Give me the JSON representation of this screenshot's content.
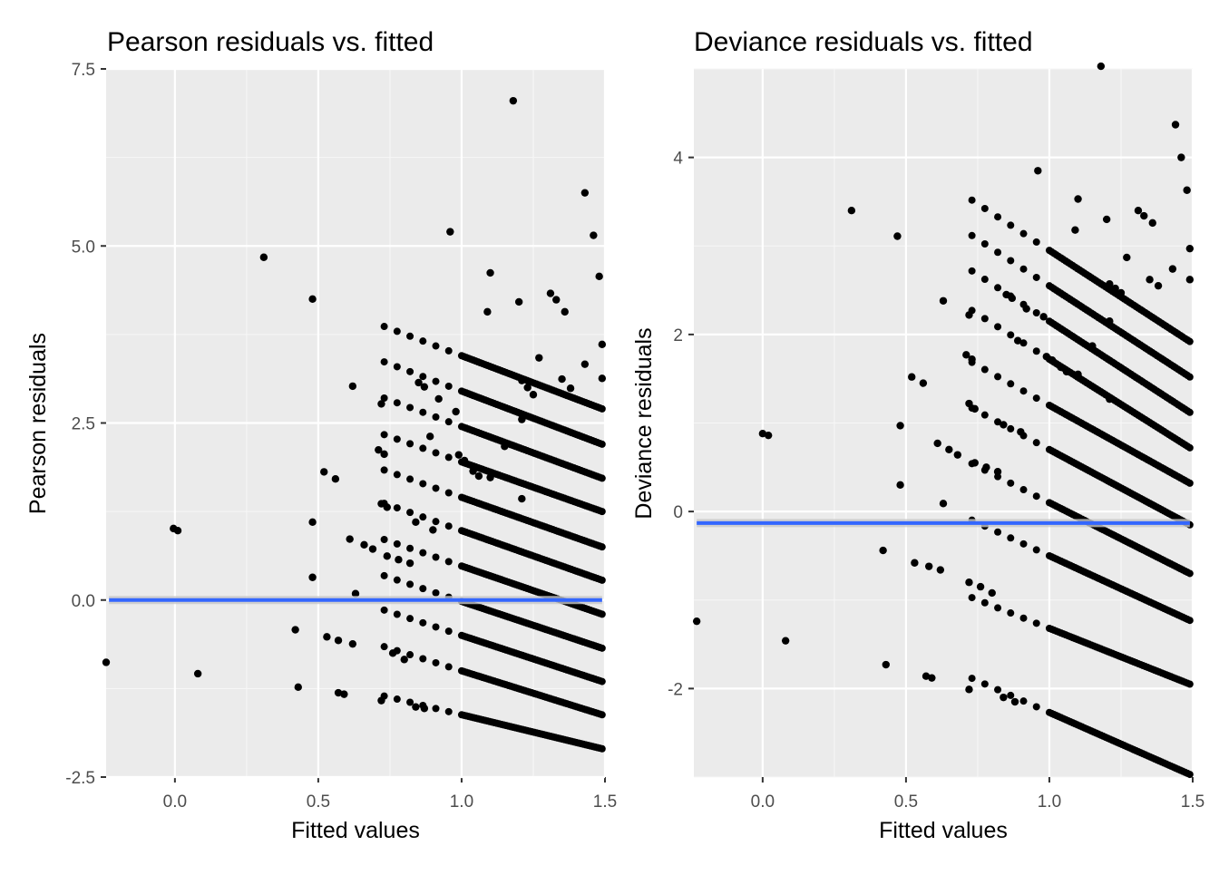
{
  "chart_data": [
    {
      "type": "scatter",
      "title": "Pearson residuals vs. fitted",
      "xlabel": "Fitted values",
      "ylabel": "Pearson residuals",
      "xlim": [
        -0.24,
        1.5
      ],
      "ylim": [
        -2.5,
        7.5
      ],
      "x_ticks": [
        0.0,
        0.5,
        1.0,
        1.5
      ],
      "x_tick_labels": [
        "0.0",
        "0.5",
        "1.0",
        "1.5"
      ],
      "y_ticks": [
        -2.5,
        0.0,
        2.5,
        5.0,
        7.5
      ],
      "y_tick_labels": [
        "-2.5",
        "0.0",
        "2.5",
        "5.0",
        "7.5"
      ],
      "grid": true,
      "panel_background": "#ebebeb",
      "point_color": "#000000",
      "smooth_line": {
        "from": [
          -0.23,
          0.0
        ],
        "to": [
          1.49,
          0.0
        ],
        "color": "#3366ff",
        "band_color": "#c8c8c8"
      },
      "bands": [
        {
          "y_at_min": -1.62,
          "y_at_max": -2.1
        },
        {
          "y_at_min": -1.0,
          "y_at_max": -1.62
        },
        {
          "y_at_min": -0.5,
          "y_at_max": -1.15
        },
        {
          "y_at_min": -0.02,
          "y_at_max": -0.68
        },
        {
          "y_at_min": 0.48,
          "y_at_max": -0.2
        },
        {
          "y_at_min": 0.98,
          "y_at_max": 0.28
        },
        {
          "y_at_min": 1.45,
          "y_at_max": 0.75
        },
        {
          "y_at_min": 1.95,
          "y_at_max": 1.25
        },
        {
          "y_at_min": 2.45,
          "y_at_max": 1.72
        },
        {
          "y_at_min": 2.95,
          "y_at_max": 2.2
        },
        {
          "y_at_min": 3.45,
          "y_at_max": 2.7
        }
      ],
      "band_x_range": [
        1.0,
        1.49
      ],
      "points": [
        {
          "x": -0.24,
          "y": -0.88
        },
        {
          "x": -0.005,
          "y": 1.01
        },
        {
          "x": 0.01,
          "y": 0.98
        },
        {
          "x": 0.08,
          "y": -1.04
        },
        {
          "x": 0.31,
          "y": 4.84
        },
        {
          "x": 0.42,
          "y": -0.42
        },
        {
          "x": 0.43,
          "y": -1.23
        },
        {
          "x": 0.48,
          "y": 4.25
        },
        {
          "x": 0.48,
          "y": 1.1
        },
        {
          "x": 0.48,
          "y": 0.32
        },
        {
          "x": 0.52,
          "y": 1.81
        },
        {
          "x": 0.53,
          "y": -0.52
        },
        {
          "x": 0.56,
          "y": 1.71
        },
        {
          "x": 0.57,
          "y": -1.31
        },
        {
          "x": 0.57,
          "y": -0.57
        },
        {
          "x": 0.59,
          "y": -1.33
        },
        {
          "x": 0.61,
          "y": 0.86
        },
        {
          "x": 0.62,
          "y": 3.02
        },
        {
          "x": 0.62,
          "y": -0.62
        },
        {
          "x": 0.63,
          "y": 0.09
        },
        {
          "x": 0.66,
          "y": 0.78
        },
        {
          "x": 0.69,
          "y": 0.72
        },
        {
          "x": 0.71,
          "y": 2.12
        },
        {
          "x": 0.72,
          "y": 2.77
        },
        {
          "x": 0.72,
          "y": -1.42
        },
        {
          "x": 0.72,
          "y": 1.36
        },
        {
          "x": 0.73,
          "y": 2.06
        },
        {
          "x": 0.74,
          "y": 1.31
        },
        {
          "x": 0.74,
          "y": 0.62
        },
        {
          "x": 0.76,
          "y": -0.75
        },
        {
          "x": 0.78,
          "y": 0.57
        },
        {
          "x": 0.8,
          "y": -0.84
        },
        {
          "x": 0.82,
          "y": 0.52
        },
        {
          "x": 0.84,
          "y": 1.1
        },
        {
          "x": 0.84,
          "y": -1.51
        },
        {
          "x": 0.85,
          "y": 3.07
        },
        {
          "x": 0.87,
          "y": 3.01
        },
        {
          "x": 0.87,
          "y": -1.53
        },
        {
          "x": 0.89,
          "y": 2.31
        },
        {
          "x": 0.9,
          "y": 0.99
        },
        {
          "x": 0.92,
          "y": 2.84
        },
        {
          "x": 0.96,
          "y": 5.2
        },
        {
          "x": 0.98,
          "y": 2.66
        },
        {
          "x": 0.99,
          "y": 2.05
        },
        {
          "x": 1.01,
          "y": 1.97
        },
        {
          "x": 1.04,
          "y": 1.82
        },
        {
          "x": 1.06,
          "y": 1.75
        },
        {
          "x": 1.09,
          "y": 4.07
        },
        {
          "x": 1.1,
          "y": 4.62
        },
        {
          "x": 1.1,
          "y": 1.73
        },
        {
          "x": 1.15,
          "y": 2.17
        },
        {
          "x": 1.18,
          "y": 7.05
        },
        {
          "x": 1.2,
          "y": 4.21
        },
        {
          "x": 1.21,
          "y": 3.1
        },
        {
          "x": 1.21,
          "y": 2.55
        },
        {
          "x": 1.21,
          "y": 1.43
        },
        {
          "x": 1.23,
          "y": 3.0
        },
        {
          "x": 1.25,
          "y": 2.9
        },
        {
          "x": 1.27,
          "y": 3.42
        },
        {
          "x": 1.31,
          "y": 4.33
        },
        {
          "x": 1.33,
          "y": 4.24
        },
        {
          "x": 1.35,
          "y": 3.12
        },
        {
          "x": 1.36,
          "y": 4.07
        },
        {
          "x": 1.38,
          "y": 2.99
        },
        {
          "x": 1.43,
          "y": 5.75
        },
        {
          "x": 1.43,
          "y": 3.33
        },
        {
          "x": 1.46,
          "y": 5.15
        },
        {
          "x": 1.48,
          "y": 4.57
        },
        {
          "x": 1.49,
          "y": 3.61
        },
        {
          "x": 1.49,
          "y": 3.13
        }
      ]
    },
    {
      "type": "scatter",
      "title": "Deviance residuals vs. fitted",
      "xlabel": "Fitted values",
      "ylabel": "Deviance residuals",
      "xlim": [
        -0.24,
        1.5
      ],
      "ylim": [
        -3.0,
        5.0
      ],
      "x_ticks": [
        0.0,
        0.5,
        1.0,
        1.5
      ],
      "x_tick_labels": [
        "0.0",
        "0.5",
        "1.0",
        "1.5"
      ],
      "y_ticks": [
        -2,
        0,
        2,
        4
      ],
      "y_tick_labels": [
        "-2",
        "0",
        "2",
        "4"
      ],
      "grid": true,
      "panel_background": "#ebebeb",
      "point_color": "#000000",
      "smooth_line": {
        "from": [
          -0.23,
          -0.13
        ],
        "to": [
          1.49,
          -0.13
        ],
        "color": "#3366ff",
        "band_color": "#c8c8c8"
      },
      "bands": [
        {
          "y_at_min": -2.27,
          "y_at_max": -2.97
        },
        {
          "y_at_min": -1.32,
          "y_at_max": -1.95
        },
        {
          "y_at_min": -0.5,
          "y_at_max": -1.23
        },
        {
          "y_at_min": 0.1,
          "y_at_max": -0.7
        },
        {
          "y_at_min": 0.7,
          "y_at_max": -0.15
        },
        {
          "y_at_min": 1.2,
          "y_at_max": 0.32
        },
        {
          "y_at_min": 1.72,
          "y_at_max": 0.72
        },
        {
          "y_at_min": 2.15,
          "y_at_max": 1.12
        },
        {
          "y_at_min": 2.55,
          "y_at_max": 1.52
        },
        {
          "y_at_min": 2.95,
          "y_at_max": 1.92
        }
      ],
      "band_x_range": [
        1.0,
        1.49
      ],
      "points": [
        {
          "x": -0.23,
          "y": -1.24
        },
        {
          "x": 0.0,
          "y": 0.88
        },
        {
          "x": 0.02,
          "y": 0.86
        },
        {
          "x": 0.08,
          "y": -1.46
        },
        {
          "x": 0.31,
          "y": 3.4
        },
        {
          "x": 0.42,
          "y": -0.44
        },
        {
          "x": 0.43,
          "y": -1.73
        },
        {
          "x": 0.47,
          "y": 3.11
        },
        {
          "x": 0.48,
          "y": 0.97
        },
        {
          "x": 0.48,
          "y": 0.3
        },
        {
          "x": 0.52,
          "y": 1.52
        },
        {
          "x": 0.53,
          "y": -0.58
        },
        {
          "x": 0.56,
          "y": 1.45
        },
        {
          "x": 0.57,
          "y": -1.86
        },
        {
          "x": 0.58,
          "y": -0.62
        },
        {
          "x": 0.59,
          "y": -1.88
        },
        {
          "x": 0.61,
          "y": 0.77
        },
        {
          "x": 0.62,
          "y": -0.66
        },
        {
          "x": 0.63,
          "y": 2.38
        },
        {
          "x": 0.63,
          "y": 0.09
        },
        {
          "x": 0.65,
          "y": 0.7
        },
        {
          "x": 0.68,
          "y": 0.64
        },
        {
          "x": 0.71,
          "y": 1.77
        },
        {
          "x": 0.72,
          "y": 2.22
        },
        {
          "x": 0.72,
          "y": -0.8
        },
        {
          "x": 0.72,
          "y": -2.01
        },
        {
          "x": 0.72,
          "y": 1.22
        },
        {
          "x": 0.73,
          "y": 1.72
        },
        {
          "x": 0.74,
          "y": 1.16
        },
        {
          "x": 0.74,
          "y": 0.55
        },
        {
          "x": 0.76,
          "y": -0.85
        },
        {
          "x": 0.78,
          "y": 0.5
        },
        {
          "x": 0.8,
          "y": -0.92
        },
        {
          "x": 0.82,
          "y": 0.45
        },
        {
          "x": 0.84,
          "y": 0.98
        },
        {
          "x": 0.84,
          "y": -2.1
        },
        {
          "x": 0.85,
          "y": 2.45
        },
        {
          "x": 0.87,
          "y": 2.41
        },
        {
          "x": 0.88,
          "y": -2.15
        },
        {
          "x": 0.89,
          "y": 1.93
        },
        {
          "x": 0.9,
          "y": 0.9
        },
        {
          "x": 0.92,
          "y": 2.29
        },
        {
          "x": 0.96,
          "y": 3.85
        },
        {
          "x": 0.98,
          "y": 2.2
        },
        {
          "x": 0.99,
          "y": 1.75
        },
        {
          "x": 1.01,
          "y": 1.71
        },
        {
          "x": 1.04,
          "y": 1.63
        },
        {
          "x": 1.06,
          "y": 1.58
        },
        {
          "x": 1.09,
          "y": 3.18
        },
        {
          "x": 1.1,
          "y": 3.53
        },
        {
          "x": 1.1,
          "y": 1.55
        },
        {
          "x": 1.15,
          "y": 1.87
        },
        {
          "x": 1.18,
          "y": 5.03
        },
        {
          "x": 1.2,
          "y": 3.3
        },
        {
          "x": 1.21,
          "y": 2.57
        },
        {
          "x": 1.21,
          "y": 2.15
        },
        {
          "x": 1.21,
          "y": 1.27
        },
        {
          "x": 1.23,
          "y": 2.52
        },
        {
          "x": 1.25,
          "y": 2.47
        },
        {
          "x": 1.27,
          "y": 2.87
        },
        {
          "x": 1.31,
          "y": 3.4
        },
        {
          "x": 1.33,
          "y": 3.34
        },
        {
          "x": 1.35,
          "y": 2.62
        },
        {
          "x": 1.36,
          "y": 3.26
        },
        {
          "x": 1.38,
          "y": 2.55
        },
        {
          "x": 1.43,
          "y": 2.74
        },
        {
          "x": 1.44,
          "y": 4.37
        },
        {
          "x": 1.46,
          "y": 4.0
        },
        {
          "x": 1.48,
          "y": 3.63
        },
        {
          "x": 1.49,
          "y": 2.97
        },
        {
          "x": 1.49,
          "y": 2.62
        }
      ]
    }
  ]
}
